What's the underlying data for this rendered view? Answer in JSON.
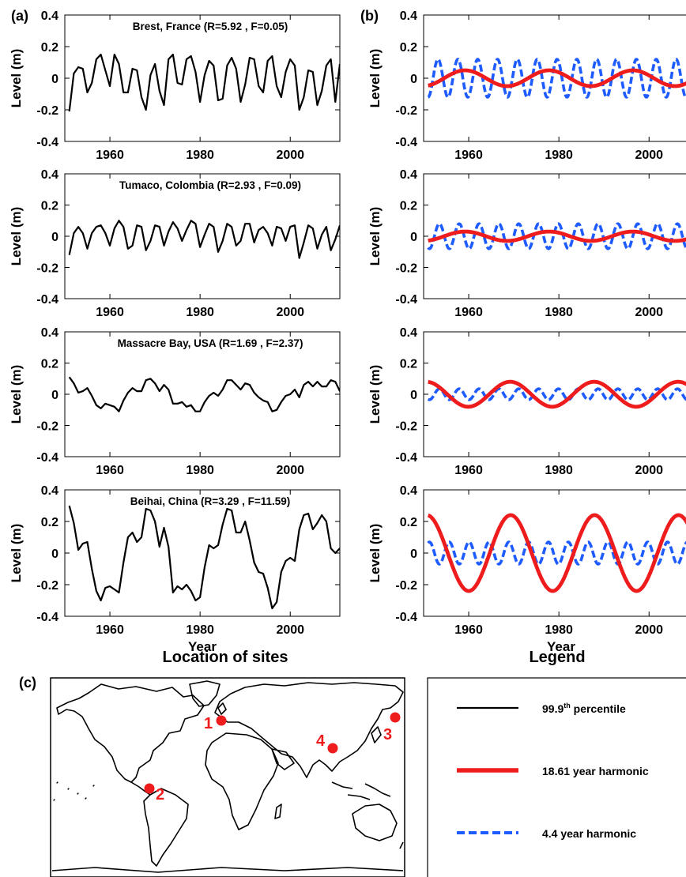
{
  "panel_labels": {
    "a": "(a)",
    "b": "(b)",
    "c": "(c)"
  },
  "map": {
    "title": "Location of sites",
    "sites": [
      {
        "label": "1",
        "name": "Brest, France"
      },
      {
        "label": "2",
        "name": "Tumaco, Colombia"
      },
      {
        "label": "3",
        "name": "Massacre Bay, USA"
      },
      {
        "label": "4",
        "name": "Beihai, China"
      }
    ]
  },
  "legend": {
    "title": "Legend",
    "entries": [
      {
        "text": "99.9",
        "sup": "th",
        "tail": " percentile",
        "color": "#000000",
        "style": "solid"
      },
      {
        "text": "18.61 year harmonic",
        "sup": "",
        "tail": "",
        "color": "#ee1c1c",
        "style": "thick"
      },
      {
        "text": "4.4 year harmonic",
        "sup": "",
        "tail": "",
        "color": "#1f5cff",
        "style": "dashed"
      }
    ]
  },
  "chart_data": [
    {
      "type": "line",
      "panel": "a",
      "row": 0,
      "title": "Brest, France (R=5.92 , F=0.05)",
      "xlabel": "",
      "ylabel": "Level (m)",
      "xlim": [
        1950,
        2011
      ],
      "ylim": [
        -0.4,
        0.4
      ],
      "xticks": [
        1960,
        1980,
        2000
      ],
      "yticks": [
        0.4,
        0.2,
        0,
        -0.2,
        -0.4
      ],
      "series": [
        {
          "color": "#000000",
          "x_start": 1951,
          "values": [
            -0.21,
            0.03,
            0.07,
            0.06,
            -0.09,
            -0.03,
            0.12,
            0.15,
            0.05,
            -0.05,
            0.15,
            0.09,
            -0.09,
            -0.09,
            0.06,
            0.05,
            -0.12,
            -0.2,
            0.02,
            0.09,
            -0.08,
            -0.17,
            0.12,
            0.15,
            -0.03,
            -0.04,
            0.12,
            0.14,
            0.04,
            -0.15,
            0.02,
            0.11,
            0.08,
            -0.14,
            -0.13,
            0.08,
            0.13,
            0.06,
            -0.15,
            -0.04,
            0.13,
            0.12,
            -0.05,
            -0.09,
            0.11,
            0.14,
            -0.05,
            -0.12,
            0.04,
            0.12,
            0.08,
            -0.2,
            -0.12,
            0.05,
            0.04,
            -0.17,
            -0.08,
            0.08,
            0.12,
            -0.15,
            0.09
          ]
        }
      ]
    },
    {
      "type": "line",
      "panel": "a",
      "row": 1,
      "title": "Tumaco, Colombia (R=2.93 , F=0.09)",
      "xlabel": "",
      "ylabel": "Level (m)",
      "xlim": [
        1950,
        2011
      ],
      "ylim": [
        -0.4,
        0.4
      ],
      "xticks": [
        1960,
        1980,
        2000
      ],
      "yticks": [
        0.4,
        0.2,
        0,
        -0.2,
        -0.4
      ],
      "series": [
        {
          "color": "#000000",
          "x_start": 1951,
          "values": [
            -0.12,
            0.02,
            0.06,
            0.02,
            -0.08,
            0.02,
            0.06,
            0.07,
            0.02,
            -0.06,
            0.05,
            0.1,
            0.06,
            -0.08,
            -0.06,
            0.07,
            0.06,
            -0.09,
            -0.03,
            0.07,
            0.06,
            -0.06,
            0.03,
            0.09,
            0.05,
            -0.03,
            0.04,
            0.1,
            0.08,
            -0.07,
            0.01,
            0.08,
            0.06,
            -0.1,
            -0.03,
            0.08,
            0.06,
            -0.06,
            -0.03,
            0.08,
            0.08,
            -0.04,
            0.04,
            0.06,
            0.02,
            -0.06,
            0.06,
            0.05,
            -0.03,
            0.06,
            0.07,
            -0.14,
            -0.04,
            0.07,
            0.05,
            -0.08,
            0.01,
            0.06,
            -0.09,
            -0.02,
            0.07
          ]
        }
      ]
    },
    {
      "type": "line",
      "panel": "a",
      "row": 2,
      "title": "Massacre Bay, USA (R=1.69 , F=2.37)",
      "xlabel": "",
      "ylabel": "Level (m)",
      "xlim": [
        1950,
        2011
      ],
      "ylim": [
        -0.4,
        0.4
      ],
      "xticks": [
        1960,
        1980,
        2000
      ],
      "yticks": [
        0.4,
        0.2,
        0,
        -0.2,
        -0.4
      ],
      "series": [
        {
          "color": "#000000",
          "x_start": 1951,
          "values": [
            0.11,
            0.07,
            0.01,
            0.02,
            0.04,
            -0.01,
            -0.07,
            -0.09,
            -0.06,
            -0.07,
            -0.08,
            -0.11,
            -0.04,
            0.01,
            0.04,
            0.02,
            0.02,
            0.09,
            0.1,
            0.07,
            0.02,
            0.06,
            0.03,
            -0.06,
            -0.06,
            -0.05,
            -0.08,
            -0.07,
            -0.11,
            -0.11,
            -0.05,
            -0.01,
            0.01,
            -0.01,
            0.03,
            0.09,
            0.09,
            0.06,
            0.03,
            0.07,
            0.06,
            0.01,
            -0.02,
            -0.04,
            -0.05,
            -0.11,
            -0.1,
            -0.05,
            -0.01,
            0.0,
            0.03,
            -0.02,
            0.06,
            0.08,
            0.05,
            0.08,
            0.05,
            0.05,
            0.09,
            0.08,
            0.02
          ]
        }
      ]
    },
    {
      "type": "line",
      "panel": "a",
      "row": 3,
      "title": "Beihai, China (R=3.29 , F=11.59)",
      "xlabel": "Year",
      "ylabel": "Level (m)",
      "xlim": [
        1950,
        2011
      ],
      "ylim": [
        -0.4,
        0.4
      ],
      "xticks": [
        1960,
        1980,
        2000
      ],
      "yticks": [
        0.4,
        0.2,
        0,
        -0.2,
        -0.4
      ],
      "series": [
        {
          "color": "#000000",
          "x_start": 1951,
          "values": [
            0.3,
            0.19,
            0.02,
            0.06,
            0.07,
            -0.1,
            -0.24,
            -0.3,
            -0.22,
            -0.21,
            -0.23,
            -0.25,
            -0.06,
            0.1,
            0.13,
            0.07,
            0.1,
            0.28,
            0.27,
            0.2,
            0.04,
            0.16,
            0.04,
            -0.25,
            -0.21,
            -0.23,
            -0.2,
            -0.24,
            -0.3,
            -0.28,
            -0.09,
            0.05,
            0.03,
            0.05,
            0.18,
            0.28,
            0.27,
            0.13,
            0.13,
            0.2,
            0.08,
            -0.06,
            -0.12,
            -0.13,
            -0.22,
            -0.35,
            -0.31,
            -0.12,
            -0.05,
            -0.03,
            -0.05,
            0.15,
            0.24,
            0.25,
            0.15,
            0.19,
            0.24,
            0.2,
            0.03,
            0.0,
            0.03
          ]
        }
      ]
    },
    {
      "type": "line",
      "panel": "b",
      "row": 0,
      "xlabel": "",
      "ylabel": "Level (m)",
      "xlim": [
        1950,
        2011
      ],
      "ylim": [
        -0.4,
        0.4
      ],
      "xticks": [
        1960,
        1980,
        2000
      ],
      "yticks": [
        0.4,
        0.2,
        0,
        -0.2,
        -0.4
      ],
      "series": [
        {
          "name": "18.61 year harmonic",
          "color": "#ee1c1c",
          "kind": "harmonic",
          "period": 18.61,
          "amplitude": 0.05,
          "peak_year": 1959.2,
          "x_range": [
            1951,
            2010
          ]
        },
        {
          "name": "4.4 year harmonic",
          "color": "#1f5cff",
          "kind": "harmonic",
          "period": 4.4,
          "amplitude": 0.12,
          "peak_year": 1953.2,
          "x_range": [
            1951,
            2010
          ]
        }
      ]
    },
    {
      "type": "line",
      "panel": "b",
      "row": 1,
      "xlabel": "",
      "ylabel": "Level (m)",
      "xlim": [
        1950,
        2011
      ],
      "ylim": [
        -0.4,
        0.4
      ],
      "xticks": [
        1960,
        1980,
        2000
      ],
      "yticks": [
        0.4,
        0.2,
        0,
        -0.2,
        -0.4
      ],
      "series": [
        {
          "name": "18.61 year harmonic",
          "color": "#ee1c1c",
          "kind": "harmonic",
          "period": 18.61,
          "amplitude": 0.03,
          "peak_year": 1959.2,
          "x_range": [
            1951,
            2010
          ]
        },
        {
          "name": "4.4 year harmonic",
          "color": "#1f5cff",
          "kind": "harmonic",
          "period": 4.4,
          "amplitude": 0.08,
          "peak_year": 1953.5,
          "x_range": [
            1951,
            2010
          ]
        }
      ]
    },
    {
      "type": "line",
      "panel": "b",
      "row": 2,
      "xlabel": "",
      "ylabel": "Level (m)",
      "xlim": [
        1950,
        2011
      ],
      "ylim": [
        -0.4,
        0.4
      ],
      "xticks": [
        1960,
        1980,
        2000
      ],
      "yticks": [
        0.4,
        0.2,
        0,
        -0.2,
        -0.4
      ],
      "series": [
        {
          "name": "18.61 year harmonic",
          "color": "#ee1c1c",
          "kind": "harmonic",
          "period": 18.61,
          "amplitude": 0.08,
          "peak_year": 1950.6,
          "x_range": [
            1951,
            2010
          ]
        },
        {
          "name": "4.4 year harmonic",
          "color": "#1f5cff",
          "kind": "harmonic",
          "period": 4.4,
          "amplitude": 0.035,
          "peak_year": 1953.5,
          "x_range": [
            1951,
            2010
          ]
        }
      ]
    },
    {
      "type": "line",
      "panel": "b",
      "row": 3,
      "xlabel": "Year",
      "ylabel": "Level (m)",
      "xlim": [
        1950,
        2011
      ],
      "ylim": [
        -0.4,
        0.4
      ],
      "xticks": [
        1960,
        1980,
        2000
      ],
      "yticks": [
        0.4,
        0.2,
        0,
        -0.2,
        -0.4
      ],
      "series": [
        {
          "name": "18.61 year harmonic",
          "color": "#ee1c1c",
          "kind": "harmonic",
          "period": 18.61,
          "amplitude": 0.24,
          "peak_year": 1950.7,
          "x_range": [
            1951,
            2010
          ]
        },
        {
          "name": "4.4 year harmonic",
          "color": "#1f5cff",
          "kind": "harmonic",
          "period": 4.4,
          "amplitude": 0.07,
          "peak_year": 1951.3,
          "x_range": [
            1951,
            2010
          ]
        }
      ]
    }
  ]
}
